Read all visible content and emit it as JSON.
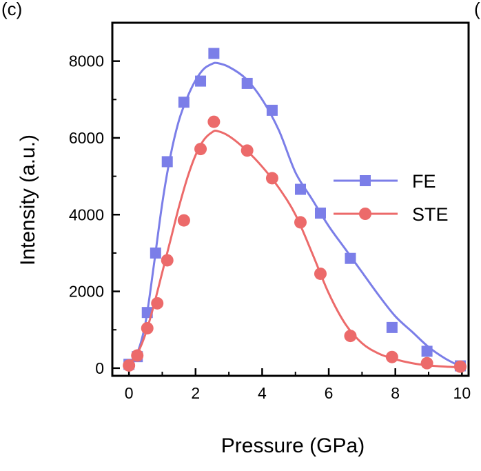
{
  "panel_label": "(c)",
  "panel_label_next": "(",
  "chart_data": {
    "type": "scatter",
    "xlabel": "Pressure (GPa)",
    "ylabel": "Intensity (a.u.)",
    "xlim": [
      -0.5,
      10.2
    ],
    "ylim": [
      -200,
      9000
    ],
    "xticks": [
      0,
      2,
      4,
      6,
      8,
      10
    ],
    "yticks": [
      0,
      2000,
      4000,
      6000,
      8000
    ],
    "grid": false,
    "legend_position": "right",
    "series": [
      {
        "name": "FE",
        "color": "#7b7ee8",
        "marker": "square",
        "x": [
          0.0,
          0.25,
          0.55,
          0.8,
          1.15,
          1.65,
          2.15,
          2.55,
          3.55,
          4.3,
          5.15,
          5.75,
          6.65,
          7.9,
          8.95,
          9.95
        ],
        "y": [
          100,
          300,
          1450,
          3000,
          5380,
          6930,
          7480,
          8200,
          7420,
          6720,
          4660,
          4040,
          2860,
          1060,
          440,
          60
        ],
        "fit_x": [
          0.0,
          0.25,
          0.5,
          0.75,
          1.0,
          1.25,
          1.5,
          1.75,
          2.0,
          2.25,
          2.5,
          2.65,
          3.0,
          3.5,
          4.0,
          4.5,
          5.0,
          5.5,
          6.0,
          6.5,
          7.0,
          7.5,
          8.0,
          8.5,
          9.0,
          9.5,
          9.95
        ],
        "fit_y": [
          150,
          400,
          1200,
          2700,
          4300,
          5550,
          6450,
          7050,
          7500,
          7800,
          7930,
          7950,
          7850,
          7550,
          7000,
          6200,
          5100,
          4400,
          3700,
          3100,
          2500,
          1900,
          1350,
          950,
          550,
          250,
          50
        ]
      },
      {
        "name": "STE",
        "color": "#ec6a6a",
        "marker": "circle",
        "x": [
          0.0,
          0.25,
          0.55,
          0.85,
          1.15,
          1.65,
          2.15,
          2.55,
          3.55,
          4.3,
          5.15,
          5.75,
          6.65,
          7.9,
          8.95,
          9.95
        ],
        "y": [
          70,
          330,
          1040,
          1690,
          2810,
          3850,
          5710,
          6420,
          5670,
          4950,
          3800,
          2460,
          840,
          290,
          130,
          40
        ],
        "fit_x": [
          0.0,
          0.25,
          0.5,
          0.75,
          1.0,
          1.25,
          1.5,
          1.75,
          2.0,
          2.25,
          2.5,
          2.65,
          3.0,
          3.5,
          4.0,
          4.5,
          5.0,
          5.5,
          6.0,
          6.5,
          7.0,
          7.5,
          8.0,
          8.5,
          9.0,
          9.5,
          9.95
        ],
        "fit_y": [
          100,
          380,
          900,
          1650,
          2500,
          3350,
          4200,
          4950,
          5550,
          5950,
          6150,
          6180,
          6050,
          5700,
          5250,
          4700,
          4000,
          3000,
          1950,
          1150,
          650,
          380,
          230,
          130,
          70,
          40,
          20
        ]
      }
    ]
  }
}
